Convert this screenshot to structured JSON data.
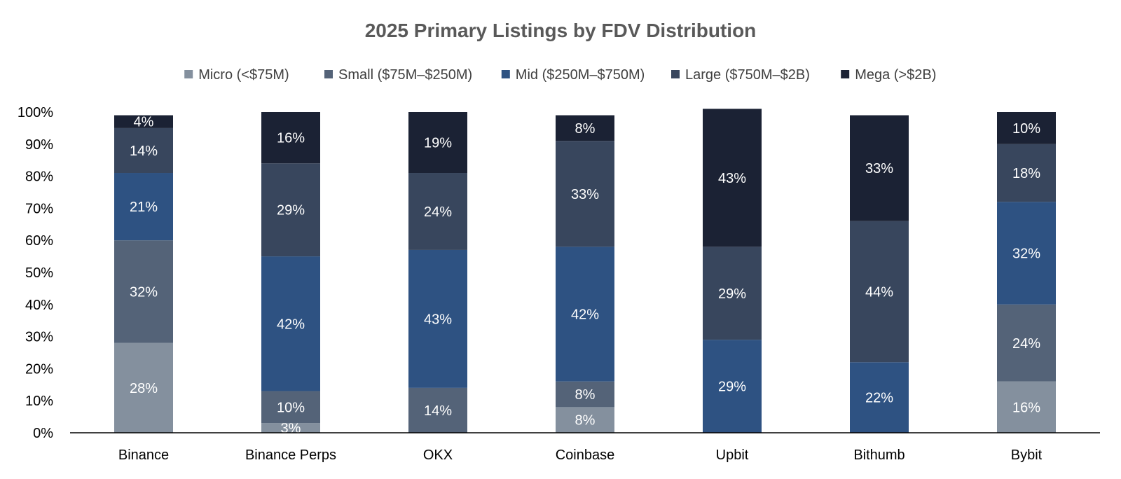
{
  "chart_data": {
    "type": "bar",
    "stacked": "percent",
    "title": "2025 Primary Listings by FDV Distribution",
    "xlabel": "",
    "ylabel": "",
    "ylim": [
      0,
      100
    ],
    "yticks": [
      "0%",
      "10%",
      "20%",
      "30%",
      "40%",
      "50%",
      "60%",
      "70%",
      "80%",
      "90%",
      "100%"
    ],
    "legend_position": "top",
    "categories": [
      "Binance",
      "Binance Perps",
      "OKX",
      "Coinbase",
      "Upbit",
      "Bithumb",
      "Bybit"
    ],
    "series": [
      {
        "name": "Micro (<$75M)",
        "color": "#84909e",
        "values": [
          28,
          3,
          0,
          8,
          0,
          0,
          16
        ]
      },
      {
        "name": "Small ($75M–$250M)",
        "color": "#546378",
        "values": [
          32,
          10,
          14,
          8,
          0,
          0,
          24
        ]
      },
      {
        "name": "Mid ($250M–$750M)",
        "color": "#2e5282",
        "values": [
          21,
          42,
          43,
          42,
          29,
          22,
          32
        ]
      },
      {
        "name": "Large ($750M–$2B)",
        "color": "#38465d",
        "values": [
          14,
          29,
          24,
          33,
          29,
          44,
          18
        ]
      },
      {
        "name": "Mega (>$2B)",
        "color": "#1b2234",
        "values": [
          4,
          16,
          19,
          8,
          43,
          33,
          10
        ]
      }
    ]
  }
}
